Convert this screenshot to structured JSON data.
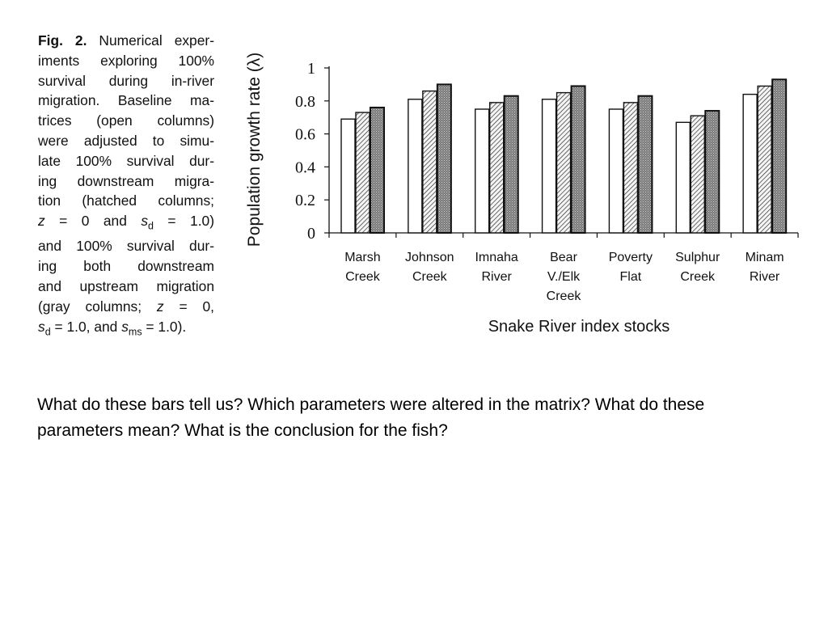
{
  "caption": {
    "label": "Fig. 2.",
    "lines": [
      "Numerical exper-",
      "iments exploring 100%",
      "survival during in-river",
      "migration. Baseline ma-",
      "trices (open columns)",
      "were adjusted to simu-",
      "late 100% survival dur-",
      "ing downstream migra-",
      "tion (hatched columns;",
      "z = 0 and s_d = 1.0)",
      "and 100% survival dur-",
      "ing both downstream",
      "and upstream migration",
      "(gray columns; z = 0,",
      "s_d = 1.0, and s_ms = 1.0)."
    ]
  },
  "chart_data": {
    "type": "bar",
    "xlabel": "Snake River index stocks",
    "ylabel": "Population growth rate (λ)",
    "ylim": [
      0,
      1
    ],
    "yticks": [
      "0",
      "0.2",
      "0.4",
      "0.6",
      "0.8",
      "1"
    ],
    "grid": false,
    "categories": [
      [
        "Marsh",
        "Creek"
      ],
      [
        "Johnson",
        "Creek"
      ],
      [
        "Imnaha",
        "River"
      ],
      [
        "Bear",
        "V./Elk",
        "Creek"
      ],
      [
        "Poverty",
        "Flat"
      ],
      [
        "Sulphur",
        "Creek"
      ],
      [
        "Minam",
        "River"
      ]
    ],
    "series": [
      {
        "values": [
          0.69,
          0.81,
          0.75,
          0.81,
          0.75,
          0.67,
          0.84
        ],
        "style": "open",
        "color": "#ffffff"
      },
      {
        "values": [
          0.73,
          0.86,
          0.79,
          0.85,
          0.79,
          0.71,
          0.89
        ],
        "style": "hatched",
        "color": "#dddddd"
      },
      {
        "values": [
          0.76,
          0.9,
          0.83,
          0.89,
          0.83,
          0.74,
          0.93
        ],
        "style": "gray",
        "color": "#888888"
      }
    ]
  },
  "question": "What do these bars tell us?  Which parameters were altered in the matrix?  What do these parameters mean?  What is the conclusion for the fish?"
}
